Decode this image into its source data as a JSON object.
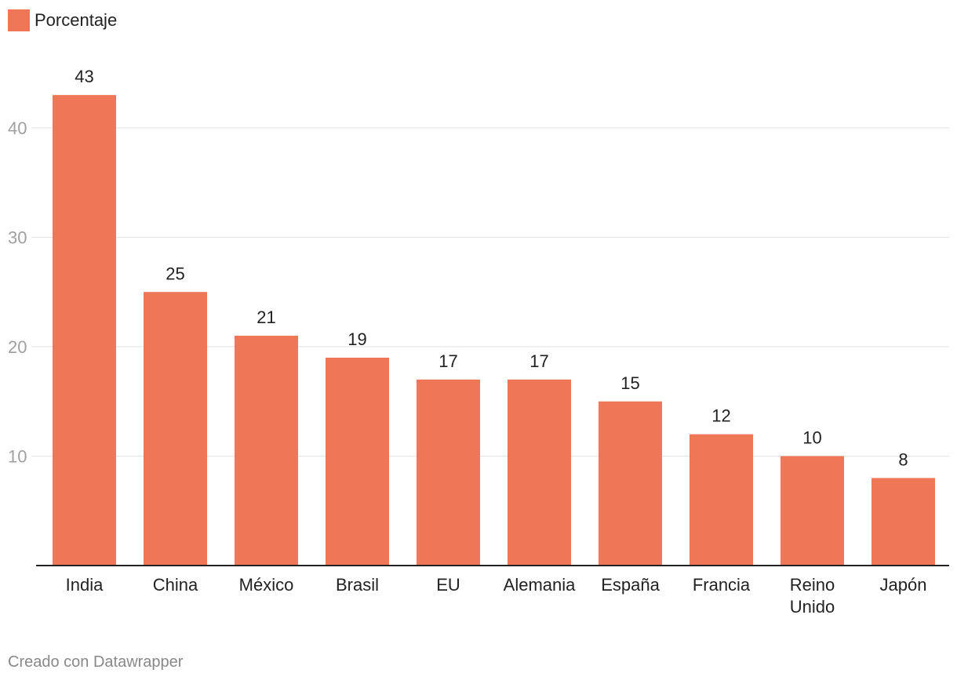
{
  "chart_data": {
    "type": "bar",
    "categories": [
      "India",
      "China",
      "México",
      "Brasil",
      "EU",
      "Alemania",
      "España",
      "Francia",
      "Reino Unido",
      "Japón"
    ],
    "series": [
      {
        "name": "Porcentaje",
        "values": [
          43,
          25,
          21,
          19,
          17,
          17,
          15,
          12,
          10,
          8
        ]
      }
    ],
    "title": "",
    "xlabel": "",
    "ylabel": "",
    "yticks": [
      10,
      20,
      30,
      40
    ],
    "ylim": [
      0,
      43
    ],
    "grid": true,
    "legend_position": "top-left",
    "show_data_labels": true
  },
  "colors": {
    "bar": "#ef7657",
    "grid": "#e2e2e2",
    "axis": "#222222",
    "tick_label": "#a0a0a0",
    "text": "#222222"
  },
  "credit": "Creado con Datawrapper"
}
